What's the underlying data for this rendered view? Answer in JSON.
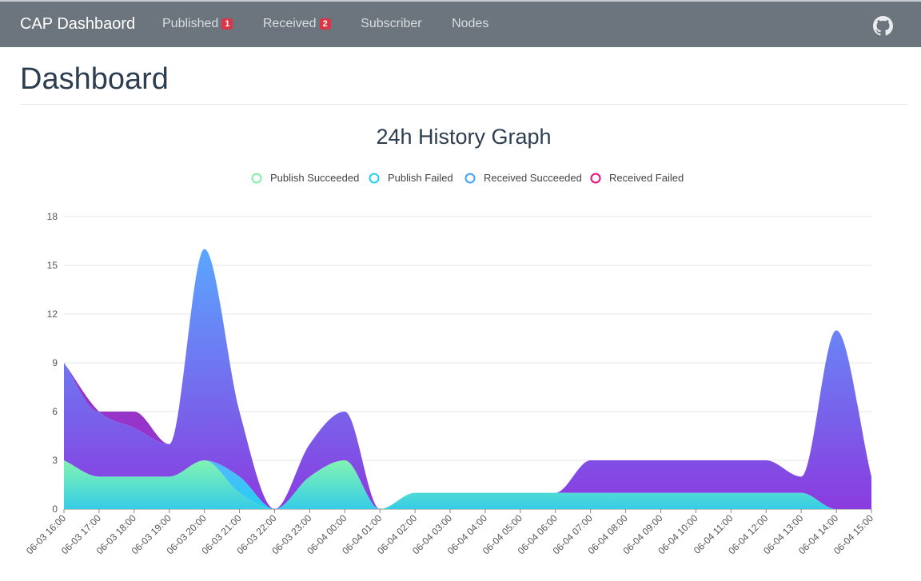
{
  "navbar": {
    "brand": "CAP Dashbaord",
    "items": [
      {
        "label": "Published",
        "badge": "1"
      },
      {
        "label": "Received",
        "badge": "2"
      },
      {
        "label": "Subscriber"
      },
      {
        "label": "Nodes"
      }
    ],
    "github_icon": "github-icon"
  },
  "page": {
    "title": "Dashboard"
  },
  "chart_data": {
    "type": "area",
    "title": "24h History Graph",
    "legend_position": "top-center",
    "xlabel": "",
    "ylabel": "",
    "ylim": [
      0,
      18
    ],
    "yticks": [
      "0",
      "3",
      "6",
      "9",
      "12",
      "15",
      "18"
    ],
    "grid": true,
    "x": [
      "06-03 16:00",
      "06-03 17:00",
      "06-03 18:00",
      "06-03 19:00",
      "06-03 20:00",
      "06-03 21:00",
      "06-03 22:00",
      "06-03 23:00",
      "06-04 00:00",
      "06-04 01:00",
      "06-04 02:00",
      "06-04 03:00",
      "06-04 04:00",
      "06-04 05:00",
      "06-04 06:00",
      "06-04 07:00",
      "06-04 08:00",
      "06-04 09:00",
      "06-04 10:00",
      "06-04 11:00",
      "06-04 12:00",
      "06-04 13:00",
      "06-04 14:00",
      "06-04 15:00"
    ],
    "series": [
      {
        "name": "Publish Succeeded",
        "legend_color": "#7ef0a8",
        "color_top": "#82f4b0",
        "color_bottom": "#36cde8",
        "values": [
          3,
          2,
          2,
          2,
          3,
          1,
          0,
          2,
          3,
          0,
          1,
          1,
          1,
          1,
          1,
          1,
          1,
          1,
          1,
          1,
          1,
          1,
          0,
          0
        ]
      },
      {
        "name": "Publish Failed",
        "legend_color": "#22d1ee",
        "color_top": "#55b6ff",
        "color_bottom": "#22d1ee",
        "values": [
          0,
          0,
          0,
          0,
          0,
          1,
          0,
          0,
          0,
          0,
          0,
          0,
          0,
          0,
          0,
          0,
          0,
          0,
          0,
          0,
          0,
          0,
          0,
          0
        ]
      },
      {
        "name": "Received Succeeded",
        "legend_color": "#3fa3ff",
        "color_top": "#5aa6ff",
        "color_bottom": "#8a3bdf",
        "values": [
          6,
          4,
          3,
          2,
          13,
          4,
          0,
          2,
          3,
          0,
          0,
          0,
          0,
          0,
          0,
          2,
          2,
          2,
          2,
          2,
          2,
          1,
          11,
          2
        ]
      },
      {
        "name": "Received Failed",
        "legend_color": "#e6127a",
        "color_top": "#b0279e",
        "color_bottom": "#8a3bdf",
        "values": [
          0,
          0,
          1,
          0,
          0,
          0,
          0,
          0,
          0,
          0,
          0,
          0,
          0,
          0,
          0,
          0,
          0,
          0,
          0,
          0,
          0,
          0,
          0,
          0
        ]
      }
    ]
  }
}
